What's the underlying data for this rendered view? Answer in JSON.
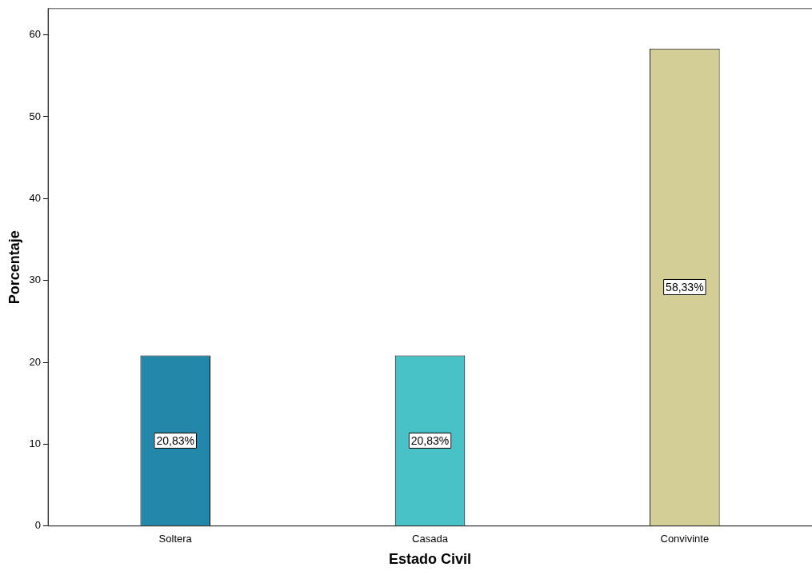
{
  "chart_data": {
    "type": "bar",
    "xlabel": "Estado Civil",
    "ylabel": "Porcentaje",
    "categories": [
      "Soltera",
      "Casada",
      "Convivinte"
    ],
    "values": [
      20.83,
      20.83,
      58.33
    ],
    "colors": [
      "#2387a9",
      "#48c2c6",
      "#d3cd96"
    ],
    "value_labels": [
      "20,83%",
      "20,83%",
      "58,33%"
    ],
    "ylim": [
      0,
      63.2
    ],
    "yticks": [
      0,
      10,
      20,
      30,
      40,
      50,
      60
    ],
    "grid": false,
    "legend": false
  }
}
